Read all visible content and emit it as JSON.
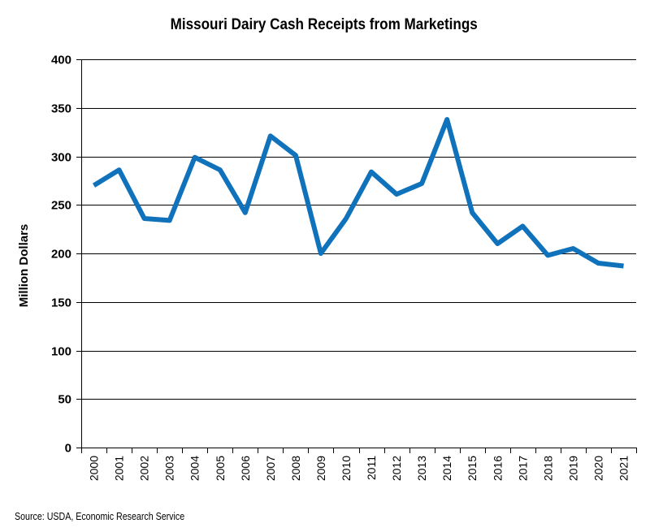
{
  "chart_data": {
    "type": "line",
    "title": "Missouri Dairy Cash Receipts from Marketings",
    "xlabel": "",
    "ylabel": "Million Dollars",
    "categories": [
      "2000",
      "2001",
      "2002",
      "2003",
      "2004",
      "2005",
      "2006",
      "2007",
      "2008",
      "2009",
      "2010",
      "2011",
      "2012",
      "2013",
      "2014",
      "2015",
      "2016",
      "2017",
      "2018",
      "2019",
      "2020",
      "2021"
    ],
    "series": [
      {
        "name": "",
        "values": [
          270,
          286,
          236,
          234,
          299,
          286,
          242,
          321,
          301,
          200,
          236,
          284,
          261,
          272,
          338,
          242,
          210,
          228,
          198,
          205,
          190,
          187
        ]
      }
    ],
    "ylim": [
      0,
      400
    ],
    "yticks": [
      0,
      50,
      100,
      150,
      200,
      250,
      300,
      350,
      400
    ],
    "grid": "horizontal",
    "legend": "none",
    "line_color": "#0f72bb"
  },
  "source": "Source: USDA, Economic Research Service"
}
